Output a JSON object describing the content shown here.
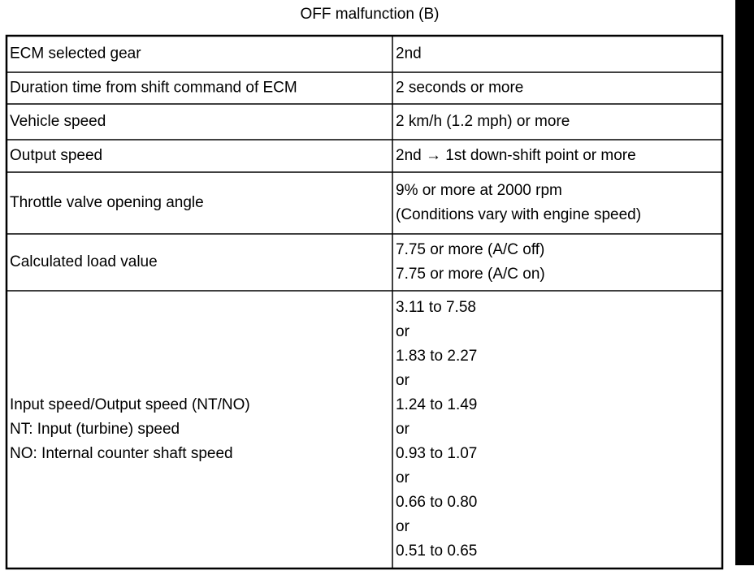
{
  "title": "OFF malfunction (B)",
  "table": {
    "rows": [
      {
        "label": [
          "ECM selected gear"
        ],
        "value": [
          "2nd"
        ]
      },
      {
        "label": [
          "Duration time from shift command of ECM"
        ],
        "value": [
          "2 seconds or more"
        ]
      },
      {
        "label": [
          "Vehicle speed"
        ],
        "value": [
          "2 km/h (1.2 mph) or more"
        ]
      },
      {
        "label": [
          "Output speed"
        ],
        "value": [
          "2nd → 1st down-shift point or more"
        ]
      },
      {
        "label": [
          "Throttle valve opening angle"
        ],
        "value": [
          "9% or more at 2000 rpm",
          "(Conditions vary with engine speed)"
        ]
      },
      {
        "label": [
          "Calculated load value"
        ],
        "value": [
          "7.75 or more (A/C off)",
          "7.75 or more (A/C on)"
        ]
      },
      {
        "label": [
          "Input speed/Output speed (NT/NO)",
          "NT: Input (turbine) speed",
          "NO: Internal counter shaft speed"
        ],
        "value": [
          "3.11 to 7.58",
          "or",
          "1.83 to 2.27",
          "or",
          "1.24 to 1.49",
          "or",
          "0.93 to 1.07",
          "or",
          "0.66 to 0.80",
          "or",
          "0.51 to 0.65"
        ]
      }
    ]
  }
}
